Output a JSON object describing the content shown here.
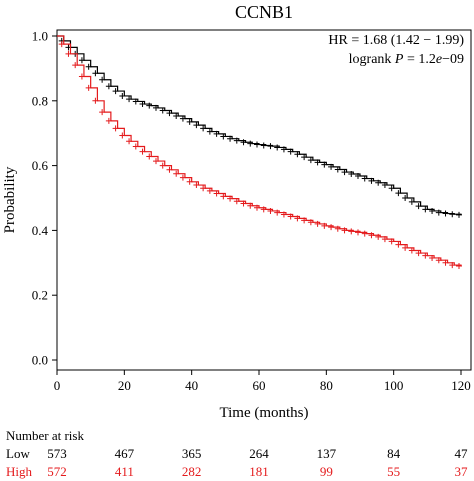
{
  "chart_data": {
    "type": "line",
    "chart_subtype": "kaplan-meier survival curve",
    "title": "CCNB1",
    "annotation": {
      "hr_text": "HR = 1.68 (1.42 − 1.99)",
      "logrank_prefix": "logrank ",
      "logrank_p_symbol": "P",
      "logrank_value_pre": " = 1.2",
      "logrank_value_e": "e",
      "logrank_value_post": "−09"
    },
    "xlabel": "Time (months)",
    "ylabel": "Probability",
    "xlim": [
      0,
      120
    ],
    "ylim": [
      0,
      1.0
    ],
    "x_ticks": [
      0,
      20,
      40,
      60,
      80,
      100,
      120
    ],
    "y_ticks": [
      0.0,
      0.2,
      0.4,
      0.6,
      0.8,
      1.0
    ],
    "y_tick_labels": [
      "0.0",
      "0.2",
      "0.4",
      "0.6",
      "0.8",
      "1.0"
    ],
    "grid": false,
    "series": [
      {
        "name": "Low",
        "color": "#000000",
        "x": [
          0,
          2,
          4,
          6,
          8,
          10,
          12,
          14,
          16,
          18,
          20,
          22,
          24,
          26,
          28,
          30,
          32,
          34,
          36,
          38,
          40,
          42,
          44,
          46,
          48,
          50,
          52,
          54,
          56,
          58,
          60,
          62,
          64,
          66,
          68,
          70,
          72,
          74,
          76,
          78,
          80,
          82,
          84,
          86,
          88,
          90,
          92,
          94,
          96,
          98,
          100,
          102,
          104,
          106,
          108,
          110,
          112,
          114,
          116,
          118,
          120
        ],
        "y": [
          1.0,
          0.985,
          0.965,
          0.945,
          0.925,
          0.905,
          0.885,
          0.865,
          0.845,
          0.83,
          0.815,
          0.805,
          0.798,
          0.79,
          0.785,
          0.778,
          0.77,
          0.762,
          0.753,
          0.745,
          0.735,
          0.725,
          0.715,
          0.705,
          0.698,
          0.69,
          0.683,
          0.677,
          0.672,
          0.668,
          0.665,
          0.662,
          0.66,
          0.656,
          0.65,
          0.643,
          0.635,
          0.626,
          0.617,
          0.61,
          0.603,
          0.596,
          0.588,
          0.58,
          0.574,
          0.568,
          0.56,
          0.553,
          0.547,
          0.54,
          0.53,
          0.515,
          0.5,
          0.488,
          0.475,
          0.465,
          0.46,
          0.455,
          0.452,
          0.45,
          0.448
        ]
      },
      {
        "name": "High",
        "color": "#e41a1c",
        "x": [
          0,
          2,
          4,
          6,
          8,
          10,
          12,
          14,
          16,
          18,
          20,
          22,
          24,
          26,
          28,
          30,
          32,
          34,
          36,
          38,
          40,
          42,
          44,
          46,
          48,
          50,
          52,
          54,
          56,
          58,
          60,
          62,
          64,
          66,
          68,
          70,
          72,
          74,
          76,
          78,
          80,
          82,
          84,
          86,
          88,
          90,
          92,
          94,
          96,
          98,
          100,
          102,
          104,
          106,
          108,
          110,
          112,
          114,
          116,
          118,
          120
        ],
        "y": [
          1.0,
          0.975,
          0.945,
          0.91,
          0.875,
          0.84,
          0.8,
          0.765,
          0.738,
          0.715,
          0.693,
          0.675,
          0.659,
          0.643,
          0.628,
          0.614,
          0.6,
          0.587,
          0.575,
          0.563,
          0.55,
          0.54,
          0.53,
          0.522,
          0.514,
          0.505,
          0.498,
          0.49,
          0.483,
          0.476,
          0.47,
          0.465,
          0.46,
          0.455,
          0.449,
          0.443,
          0.437,
          0.431,
          0.425,
          0.42,
          0.414,
          0.41,
          0.405,
          0.4,
          0.397,
          0.394,
          0.39,
          0.385,
          0.38,
          0.373,
          0.366,
          0.356,
          0.346,
          0.338,
          0.33,
          0.322,
          0.315,
          0.308,
          0.3,
          0.293,
          0.29
        ]
      }
    ],
    "risk_table": {
      "title": "Number at risk",
      "times": [
        0,
        20,
        40,
        60,
        80,
        100,
        120
      ],
      "rows": [
        {
          "label": "Low",
          "color": "#000000",
          "values": [
            "573",
            "467",
            "365",
            "264",
            "137",
            "84",
            "47"
          ]
        },
        {
          "label": "High",
          "color": "#e41a1c",
          "values": [
            "572",
            "411",
            "282",
            "181",
            "99",
            "55",
            "37"
          ]
        }
      ]
    }
  }
}
